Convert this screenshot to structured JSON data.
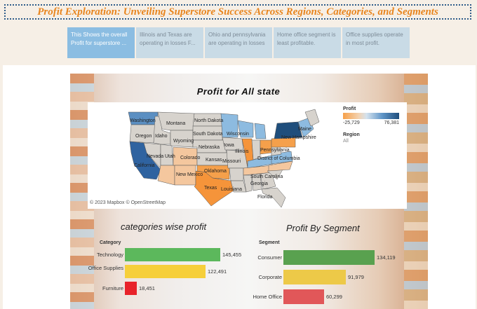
{
  "header": {
    "title": "Profit Exploration: Unveiling Superstore Success Across Regions, Categories, and Segments"
  },
  "story_tabs": [
    {
      "label": "This Shows the overall Profit for superstore ..."
    },
    {
      "label": "Illinois and Texas are operating in losses F..."
    },
    {
      "label": "Ohio and pennsylvania are operating in losses"
    },
    {
      "label": "Home office segment is least profitable."
    },
    {
      "label": "Office supplies operate in most profit."
    }
  ],
  "map": {
    "title": "Profit  for  All state",
    "attribution": "© 2023 Mapbox © OpenStreetMap",
    "state_labels": [
      {
        "name": "Washington"
      },
      {
        "name": "Montana"
      },
      {
        "name": "North Dakota"
      },
      {
        "name": "Oregon"
      },
      {
        "name": "Idaho"
      },
      {
        "name": "South Dakota"
      },
      {
        "name": "Wisconsin"
      },
      {
        "name": "Wyoming"
      },
      {
        "name": "Nebraska"
      },
      {
        "name": "Iowa"
      },
      {
        "name": "Illinois"
      },
      {
        "name": "Nevada"
      },
      {
        "name": "Utah"
      },
      {
        "name": "Colorado"
      },
      {
        "name": "Kansas"
      },
      {
        "name": "Missouri"
      },
      {
        "name": "California"
      },
      {
        "name": "New Mexico"
      },
      {
        "name": "Oklahoma"
      },
      {
        "name": "Texas"
      },
      {
        "name": "Louisiana"
      },
      {
        "name": "South Carolina"
      },
      {
        "name": "Georgia"
      },
      {
        "name": "Florida"
      },
      {
        "name": "Pennsylvania"
      },
      {
        "name": "District of Columbia"
      },
      {
        "name": "New Hampshire"
      },
      {
        "name": "Maine"
      }
    ],
    "legend": {
      "title": "Profit",
      "min": "-25,729",
      "max": "76,381",
      "region_title": "Region",
      "region_value": "All",
      "color_low": "#f7a14a",
      "color_high": "#1f4e7c"
    }
  },
  "chart_data": [
    {
      "type": "bar",
      "orientation": "horizontal",
      "title": "categories wise profit",
      "axis_header": "Category",
      "categories": [
        "Technology",
        "Office Supplies",
        "Furniture"
      ],
      "values": [
        145455,
        122491,
        18451
      ],
      "value_labels": [
        "145,455",
        "122,491",
        "18,451"
      ],
      "colors": [
        "#5cb85c",
        "#f6cf3a",
        "#e8232a"
      ],
      "xlim": [
        0,
        145455
      ]
    },
    {
      "type": "bar",
      "orientation": "horizontal",
      "title": "Profit By Segment",
      "axis_header": "Segment",
      "categories": [
        "Consumer",
        "Corporate",
        "Home Office"
      ],
      "values": [
        134119,
        91979,
        60299
      ],
      "value_labels": [
        "134,119",
        "91,979",
        "60,299"
      ],
      "colors": [
        "#59a14f",
        "#edc948",
        "#e15759"
      ],
      "xlim": [
        0,
        134119
      ]
    }
  ]
}
